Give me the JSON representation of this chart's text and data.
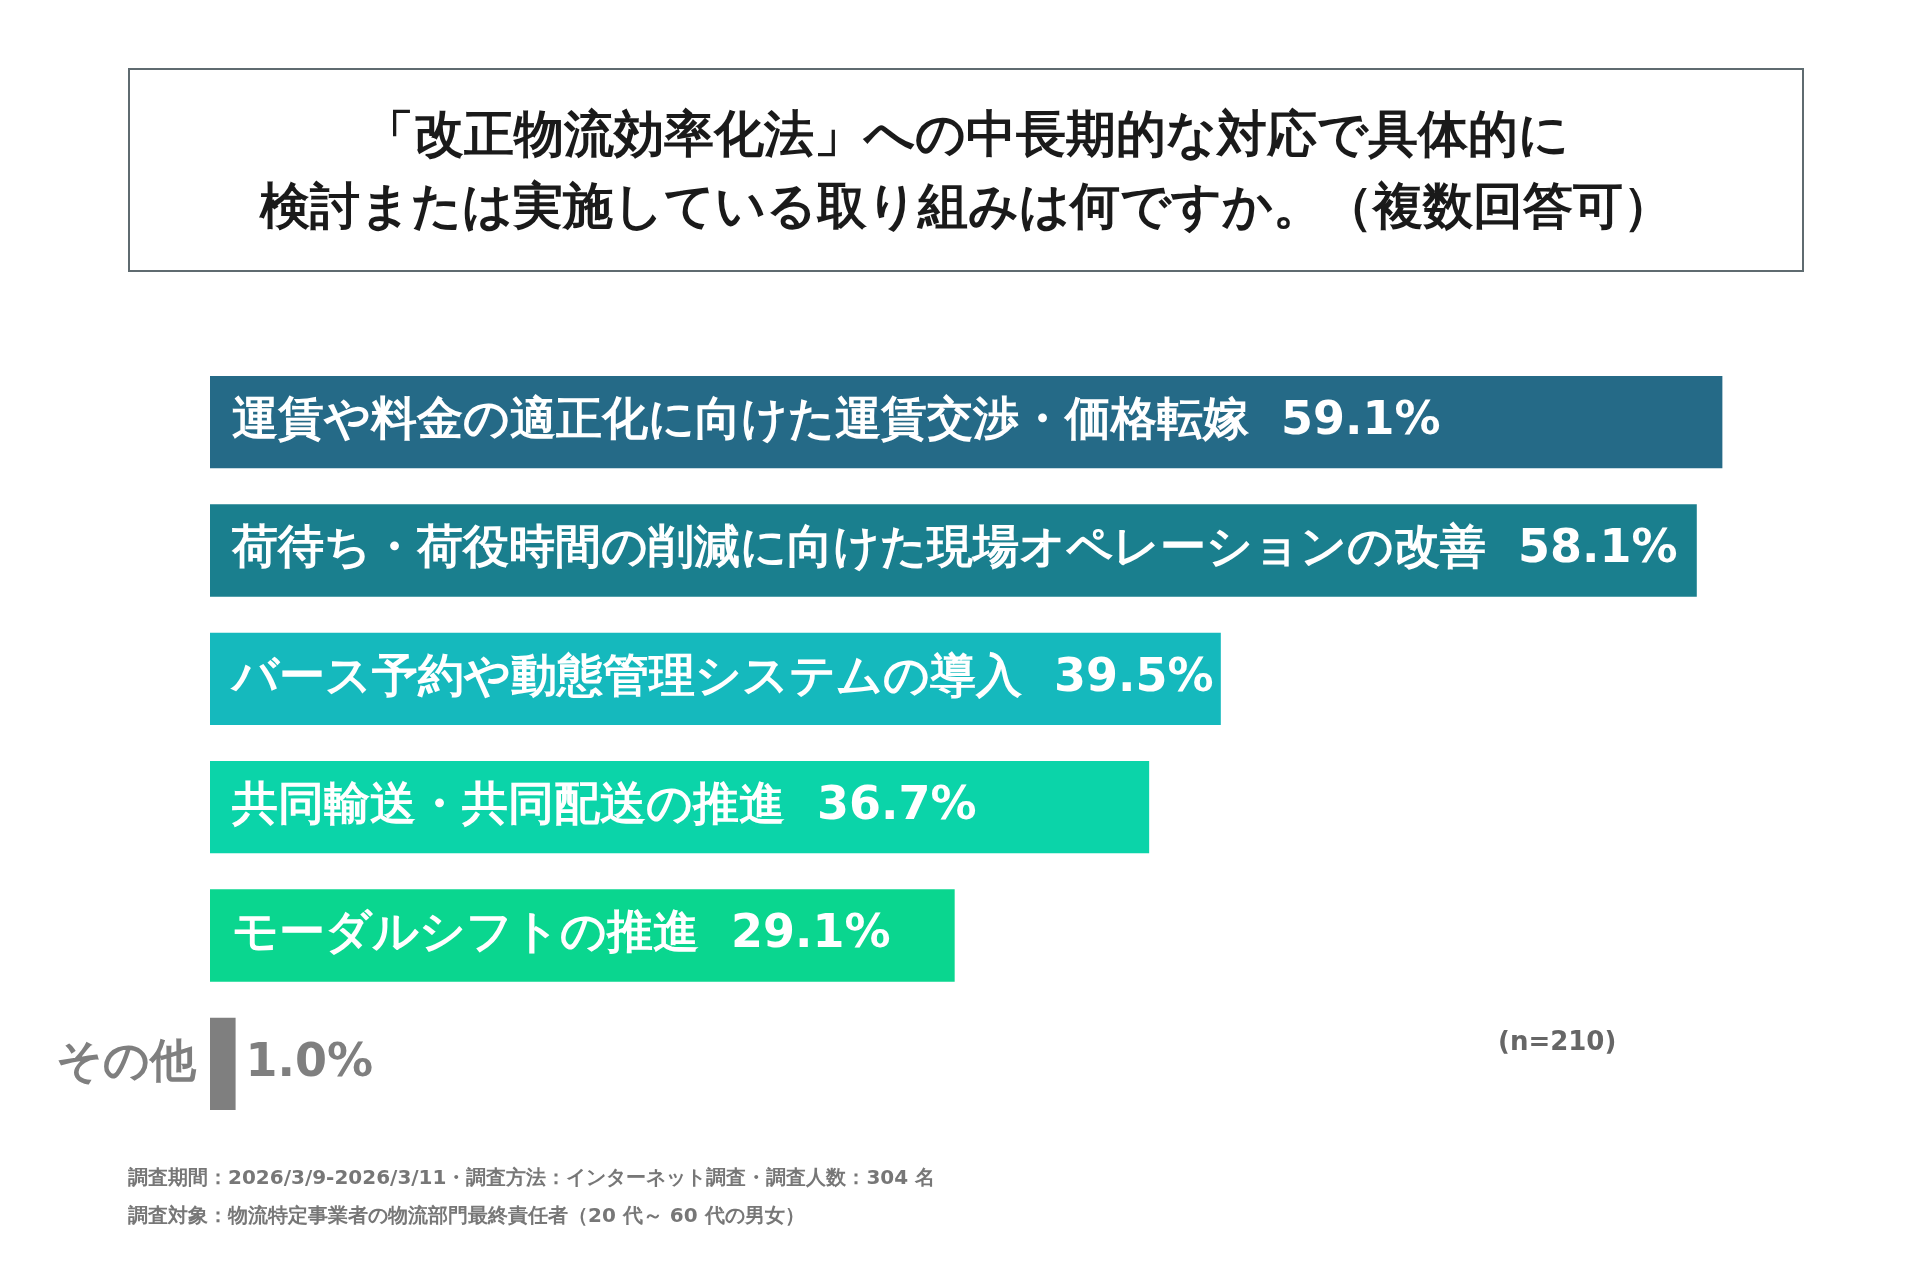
{
  "chart_data": {
    "type": "bar",
    "orientation": "horizontal",
    "title": "「改正物流効率化法」への中長期的な対応で具体的に",
    "subtitle": "検討または実施している取り組みは何ですか。（複数回答可）",
    "categories": [
      "運賃や料金の適正化に向けた運賃交渉・価格転嫁",
      "荷待ち・荷役時間の削減に向けた現場オペレーションの改善",
      "バース予約や動態管理システムの導入",
      "共同輸送・共同配送の推進",
      "モーダルシフトの推進",
      "その他"
    ],
    "values": [
      59.1,
      58.1,
      39.5,
      36.7,
      29.1,
      1.0
    ],
    "value_labels": [
      "59.1%",
      "58.1%",
      "39.5%",
      "36.7%",
      "29.1%",
      "1.0%"
    ],
    "colors": [
      "#256a87",
      "#1a7f8e",
      "#15b9bd",
      "#0bd4a9",
      "#0ad68f",
      "#7f7f7f"
    ],
    "legend": false,
    "annotations": [
      "(n=210)",
      "調査期間：2026/3/9-2026/3/11・調査方法：インターネット調査・調査人数：304 名",
      "調査対象：物流特定事業者の物流部門最終責任者（20 代～ 60 代の男女）"
    ]
  }
}
